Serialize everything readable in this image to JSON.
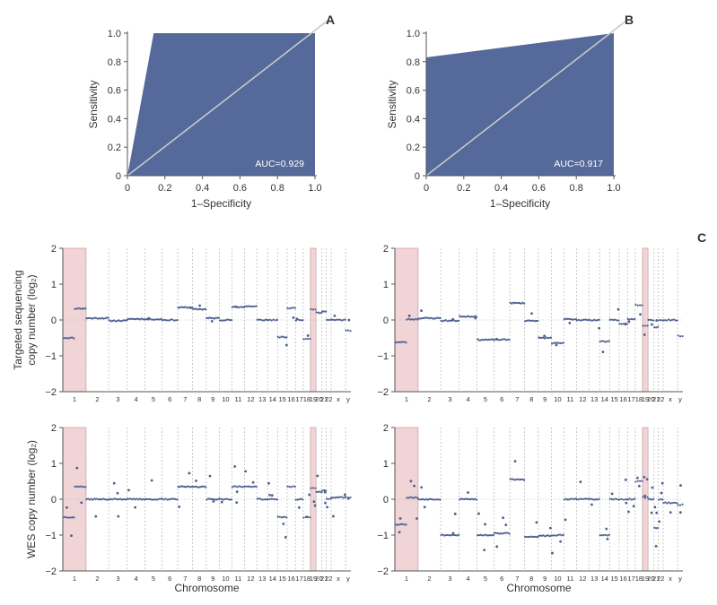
{
  "colors": {
    "fill": "#55699a",
    "diag": "#c9c9c9",
    "dot": "#4d5f90",
    "highlight": "#f0d4d6",
    "highlight_edge": "#d7a3a6"
  },
  "roc_panels": [
    {
      "letter": "A",
      "auc_label": "AUC=0.929",
      "xlabel": "1–Specificity",
      "ylabel": "Sensitivity",
      "xticks": [
        "0",
        "0.2",
        "0.4",
        "0.6",
        "0.8",
        "1.0"
      ],
      "yticks": [
        "0",
        "0.2",
        "0.4",
        "0.6",
        "0.8",
        "1.0"
      ]
    },
    {
      "letter": "B",
      "auc_label": "AUC=0.917",
      "xlabel": "1–Specificity",
      "ylabel": "Sensitivity",
      "xticks": [
        "0",
        "0.2",
        "0.4",
        "0.6",
        "0.8",
        "1.0"
      ],
      "yticks": [
        "0",
        "0.2",
        "0.4",
        "0.6",
        "0.8",
        "1.0"
      ]
    }
  ],
  "panel_c": {
    "letter": "C",
    "ylabel_targeted": "Targeted sequencing\ncopy number (log₂)",
    "ylabel_wes": "WES copy number (log₂)",
    "xlabel": "Chromosome",
    "yticks": [
      "2",
      "1",
      "0",
      "−1",
      "−2"
    ],
    "chromosomes": [
      "1",
      "2",
      "3",
      "4",
      "5",
      "6",
      "7",
      "8",
      "9",
      "10",
      "11",
      "12",
      "13",
      "14",
      "15",
      "16",
      "17",
      "18",
      "19",
      "20",
      "21",
      "22",
      "x",
      "y"
    ]
  },
  "chart_data": [
    {
      "type": "area",
      "title": "",
      "panel": "A",
      "xlabel": "1–Specificity",
      "ylabel": "Sensitivity",
      "xlim": [
        0,
        1
      ],
      "ylim": [
        0,
        1
      ],
      "auc": 0.929,
      "roc_curve": {
        "x": [
          0,
          0.14,
          1.0
        ],
        "y": [
          0,
          1.0,
          1.0
        ]
      },
      "reference_line": {
        "x": [
          0,
          1
        ],
        "y": [
          0,
          1
        ]
      }
    },
    {
      "type": "area",
      "title": "",
      "panel": "B",
      "xlabel": "1–Specificity",
      "ylabel": "Sensitivity",
      "xlim": [
        0,
        1
      ],
      "ylim": [
        0,
        1
      ],
      "auc": 0.917,
      "roc_curve": {
        "x": [
          0,
          0,
          1.0
        ],
        "y": [
          0,
          0.83,
          1.0
        ]
      },
      "reference_line": {
        "x": [
          0,
          1
        ],
        "y": [
          0,
          1
        ]
      }
    },
    {
      "type": "scatter",
      "title": "",
      "panel": "C-left-targeted",
      "xlabel": "",
      "ylabel": "Targeted sequencing copy number (log2)",
      "ylim": [
        -2,
        2
      ],
      "highlighted_chromosomes": [
        "1",
        "19"
      ],
      "segments": [
        {
          "chr": "1",
          "value": -0.5
        },
        {
          "chr": "1",
          "value": 0.32
        },
        {
          "chr": "2",
          "value": 0.05
        },
        {
          "chr": "3",
          "value": -0.02
        },
        {
          "chr": "4",
          "value": 0.03
        },
        {
          "chr": "5",
          "value": 0.02
        },
        {
          "chr": "6",
          "value": 0.0
        },
        {
          "chr": "7",
          "value": 0.35
        },
        {
          "chr": "8",
          "value": 0.3
        },
        {
          "chr": "9",
          "value": 0.05
        },
        {
          "chr": "10",
          "value": 0.0
        },
        {
          "chr": "11",
          "value": 0.36
        },
        {
          "chr": "12",
          "value": 0.38
        },
        {
          "chr": "13",
          "value": 0.0
        },
        {
          "chr": "14",
          "value": 0.0
        },
        {
          "chr": "15",
          "value": -0.48
        },
        {
          "chr": "16",
          "value": 0.33
        },
        {
          "chr": "17",
          "value": 0.0
        },
        {
          "chr": "18",
          "value": -0.52
        },
        {
          "chr": "19",
          "value": 0.3
        },
        {
          "chr": "20",
          "value": 0.2
        },
        {
          "chr": "21",
          "value": 0.25
        },
        {
          "chr": "22",
          "value": 0.0
        },
        {
          "chr": "x",
          "value": 0.0
        },
        {
          "chr": "y",
          "value": -0.3
        }
      ]
    },
    {
      "type": "scatter",
      "title": "",
      "panel": "C-right-targeted",
      "xlabel": "",
      "ylabel": "",
      "ylim": [
        -2,
        2
      ],
      "highlighted_chromosomes": [
        "1",
        "19"
      ],
      "segments": [
        {
          "chr": "1",
          "value": -0.62
        },
        {
          "chr": "1",
          "value": 0.02
        },
        {
          "chr": "2",
          "value": 0.05
        },
        {
          "chr": "3",
          "value": -0.02
        },
        {
          "chr": "4",
          "value": 0.1
        },
        {
          "chr": "5",
          "value": -0.55
        },
        {
          "chr": "6",
          "value": -0.55
        },
        {
          "chr": "7",
          "value": 0.47
        },
        {
          "chr": "8",
          "value": -0.02
        },
        {
          "chr": "9",
          "value": -0.5
        },
        {
          "chr": "10",
          "value": -0.65
        },
        {
          "chr": "11",
          "value": 0.02
        },
        {
          "chr": "12",
          "value": 0.0
        },
        {
          "chr": "13",
          "value": 0.0
        },
        {
          "chr": "14",
          "value": -0.6
        },
        {
          "chr": "15",
          "value": 0.0
        },
        {
          "chr": "16",
          "value": -0.12
        },
        {
          "chr": "17",
          "value": 0.02
        },
        {
          "chr": "18",
          "value": 0.42
        },
        {
          "chr": "19",
          "value": -0.15
        },
        {
          "chr": "20",
          "value": 0.0
        },
        {
          "chr": "21",
          "value": -0.2
        },
        {
          "chr": "22",
          "value": 0.0
        },
        {
          "chr": "x",
          "value": 0.0
        },
        {
          "chr": "y",
          "value": -0.45
        }
      ]
    },
    {
      "type": "scatter",
      "title": "",
      "panel": "C-left-WES",
      "xlabel": "Chromosome",
      "ylabel": "WES copy number (log2)",
      "ylim": [
        -2,
        2
      ],
      "highlighted_chromosomes": [
        "1",
        "19"
      ],
      "segments": [
        {
          "chr": "1",
          "value": -0.5
        },
        {
          "chr": "1",
          "value": 0.35
        },
        {
          "chr": "2",
          "value": 0.0
        },
        {
          "chr": "3",
          "value": 0.0
        },
        {
          "chr": "4",
          "value": 0.0
        },
        {
          "chr": "5",
          "value": 0.0
        },
        {
          "chr": "6",
          "value": 0.0
        },
        {
          "chr": "7",
          "value": 0.35
        },
        {
          "chr": "8",
          "value": 0.35
        },
        {
          "chr": "9",
          "value": 0.0
        },
        {
          "chr": "10",
          "value": 0.0
        },
        {
          "chr": "11",
          "value": 0.35
        },
        {
          "chr": "12",
          "value": 0.35
        },
        {
          "chr": "13",
          "value": 0.0
        },
        {
          "chr": "14",
          "value": 0.0
        },
        {
          "chr": "15",
          "value": -0.5
        },
        {
          "chr": "16",
          "value": 0.35
        },
        {
          "chr": "17",
          "value": 0.0
        },
        {
          "chr": "18",
          "value": -0.5
        },
        {
          "chr": "19",
          "value": 0.3
        },
        {
          "chr": "20",
          "value": 0.2
        },
        {
          "chr": "21",
          "value": 0.25
        },
        {
          "chr": "22",
          "value": 0.0
        },
        {
          "chr": "x",
          "value": 0.05
        },
        {
          "chr": "y",
          "value": 0.05
        }
      ]
    },
    {
      "type": "scatter",
      "title": "",
      "panel": "C-right-WES",
      "xlabel": "Chromosome",
      "ylabel": "",
      "ylim": [
        -2,
        2
      ],
      "highlighted_chromosomes": [
        "1",
        "19"
      ],
      "segments": [
        {
          "chr": "1",
          "value": -0.7
        },
        {
          "chr": "1",
          "value": 0.05
        },
        {
          "chr": "2",
          "value": 0.0
        },
        {
          "chr": "3",
          "value": -1.0
        },
        {
          "chr": "4",
          "value": 0.0
        },
        {
          "chr": "5",
          "value": -1.0
        },
        {
          "chr": "6",
          "value": -0.95
        },
        {
          "chr": "7",
          "value": 0.55
        },
        {
          "chr": "8",
          "value": -1.05
        },
        {
          "chr": "9",
          "value": -1.02
        },
        {
          "chr": "10",
          "value": -1.0
        },
        {
          "chr": "11",
          "value": 0.0
        },
        {
          "chr": "12",
          "value": 0.0
        },
        {
          "chr": "13",
          "value": 0.0
        },
        {
          "chr": "14",
          "value": -1.0
        },
        {
          "chr": "15",
          "value": 0.0
        },
        {
          "chr": "16",
          "value": 0.0
        },
        {
          "chr": "17",
          "value": 0.0
        },
        {
          "chr": "18",
          "value": 0.5
        },
        {
          "chr": "19",
          "value": 0.05
        },
        {
          "chr": "20",
          "value": 0.0
        },
        {
          "chr": "21",
          "value": -0.8
        },
        {
          "chr": "22",
          "value": 0.0
        },
        {
          "chr": "x",
          "value": -0.1
        },
        {
          "chr": "y",
          "value": -0.15
        }
      ]
    }
  ]
}
